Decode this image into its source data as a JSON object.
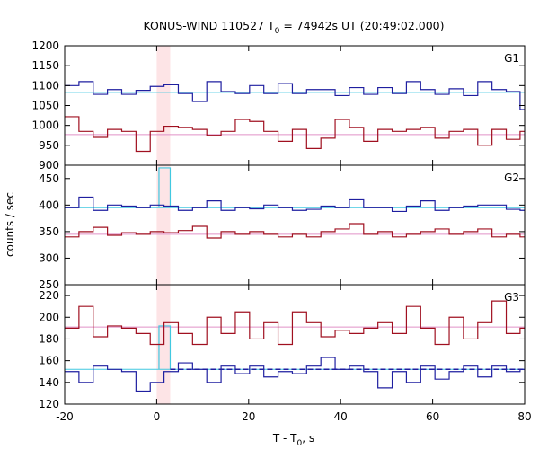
{
  "chart_data": {
    "type": "line",
    "title": "KONUS-WIND 110527 T",
    "title_sub": "0",
    "title_rest": " = 74942s UT (20:49:02.000)",
    "xlabel": "T - T",
    "xlabel_sub": "0",
    "xlabel_rest": ", s",
    "ylabel": "counts / sec",
    "xlim": [
      -20,
      80
    ],
    "xticks": [
      "-20",
      "0",
      "20",
      "40",
      "60",
      "80"
    ],
    "xtick_values": [
      -20,
      0,
      20,
      40,
      60,
      80
    ],
    "highlight_x": [
      0,
      2.944
    ],
    "colors": {
      "blue": "#1f1fa0",
      "red": "#a01020",
      "cyan": "#40c8e0",
      "pink": "#e090c8",
      "highlight": "#fde4e6"
    },
    "panels": [
      {
        "label": "G1",
        "ylim": [
          900,
          1200
        ],
        "yticks": [
          "1200",
          "1150",
          "1100",
          "1050",
          "1000",
          "950",
          "900"
        ],
        "ytick_values": [
          1200,
          1150,
          1100,
          1050,
          1000,
          950,
          900
        ],
        "bin_edges": [
          -20,
          -16.9,
          -13.8,
          -10.7,
          -7.6,
          -4.5,
          -1.4,
          1.6,
          4.7,
          7.8,
          10.9,
          14,
          17.1,
          20.2,
          23.3,
          26.4,
          29.5,
          32.6,
          35.7,
          38.8,
          41.9,
          45,
          48.1,
          51.2,
          54.3,
          57.4,
          60.5,
          63.6,
          66.7,
          69.8,
          72.9,
          76,
          79,
          80
        ],
        "series": [
          {
            "color": "blue",
            "values": [
              1100,
              1110,
              1078,
              1090,
              1078,
              1088,
              1098,
              1102,
              1080,
              1060,
              1110,
              1085,
              1080,
              1100,
              1080,
              1105,
              1080,
              1090,
              1090,
              1075,
              1095,
              1078,
              1095,
              1080,
              1110,
              1090,
              1078,
              1092,
              1075,
              1110,
              1090,
              1085,
              1040
            ]
          },
          {
            "color": "red",
            "values": [
              1022,
              985,
              970,
              990,
              985,
              935,
              985,
              998,
              995,
              990,
              975,
              985,
              1015,
              1010,
              985,
              960,
              990,
              942,
              968,
              1015,
              995,
              960,
              990,
              985,
              990,
              995,
              968,
              985,
              990,
              950,
              990,
              965,
              985
            ]
          }
        ],
        "fits": [
          {
            "color": "cyan",
            "value": 1083
          },
          {
            "color": "pink",
            "value": 977
          }
        ]
      },
      {
        "label": "G2",
        "ylim": [
          250,
          475
        ],
        "yticks": [
          "450",
          "400",
          "350",
          "300",
          "250"
        ],
        "ytick_values": [
          450,
          400,
          350,
          300,
          250
        ],
        "bin_edges": [
          -20,
          -16.9,
          -13.8,
          -10.7,
          -7.6,
          -4.5,
          -1.4,
          1.6,
          4.7,
          7.8,
          10.9,
          14,
          17.1,
          20.2,
          23.3,
          26.4,
          29.5,
          32.6,
          35.7,
          38.8,
          41.9,
          45,
          48.1,
          51.2,
          54.3,
          57.4,
          60.5,
          63.6,
          66.7,
          69.8,
          72.9,
          76,
          79,
          80
        ],
        "series": [
          {
            "color": "blue",
            "values": [
              395,
              415,
              390,
              400,
              398,
              395,
              400,
              398,
              390,
              395,
              408,
              390,
              395,
              393,
              400,
              395,
              390,
              392,
              398,
              395,
              410,
              395,
              395,
              388,
              398,
              408,
              390,
              395,
              398,
              400,
              400,
              392,
              390
            ]
          },
          {
            "color": "red",
            "values": [
              340,
              350,
              358,
              343,
              348,
              345,
              350,
              348,
              352,
              360,
              338,
              350,
              345,
              350,
              345,
              340,
              345,
              340,
              350,
              355,
              365,
              345,
              350,
              340,
              345,
              350,
              355,
              345,
              350,
              355,
              340,
              345,
              340
            ]
          }
        ],
        "fits": [
          {
            "color": "cyan",
            "value": 395
          },
          {
            "color": "pink",
            "value": 345
          }
        ],
        "spike": {
          "color": "cyan",
          "x": [
            0.5,
            2.944
          ],
          "value": 470
        }
      },
      {
        "label": "G3",
        "ylim": [
          120,
          230
        ],
        "yticks": [
          "220",
          "200",
          "180",
          "160",
          "140",
          "120"
        ],
        "ytick_values": [
          220,
          200,
          180,
          160,
          140,
          120
        ],
        "bin_edges": [
          -20,
          -16.9,
          -13.8,
          -10.7,
          -7.6,
          -4.5,
          -1.4,
          1.6,
          4.7,
          7.8,
          10.9,
          14,
          17.1,
          20.2,
          23.3,
          26.4,
          29.5,
          32.6,
          35.7,
          38.8,
          41.9,
          45,
          48.1,
          51.2,
          54.3,
          57.4,
          60.5,
          63.6,
          66.7,
          69.8,
          72.9,
          76,
          79,
          80
        ],
        "series": [
          {
            "color": "blue",
            "values": [
              150,
              140,
              155,
              152,
              150,
              132,
              140,
              150,
              158,
              152,
              140,
              155,
              148,
              155,
              145,
              150,
              148,
              155,
              163,
              152,
              155,
              150,
              135,
              150,
              140,
              155,
              143,
              150,
              155,
              145,
              155,
              150,
              152
            ]
          },
          {
            "color": "red",
            "values": [
              190,
              210,
              182,
              192,
              190,
              185,
              175,
              195,
              185,
              175,
              200,
              185,
              205,
              180,
              195,
              175,
              205,
              195,
              182,
              188,
              185,
              190,
              195,
              185,
              210,
              190,
              175,
              200,
              180,
              195,
              215,
              185,
              190
            ]
          }
        ],
        "fits": [
          {
            "color": "cyan",
            "value": 152
          },
          {
            "color": "pink",
            "value": 191
          }
        ],
        "spike": {
          "color": "cyan",
          "x": [
            0.5,
            2.944
          ],
          "value": 192
        },
        "dashed": {
          "color": "blue",
          "x_start": 2.944,
          "value": 152
        }
      }
    ]
  }
}
